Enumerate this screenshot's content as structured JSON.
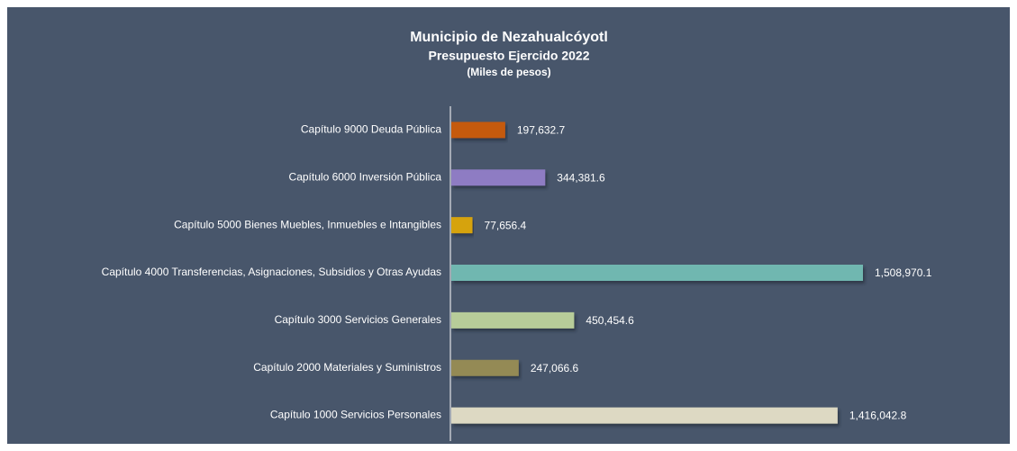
{
  "chart_data": {
    "type": "bar",
    "orientation": "horizontal",
    "title": "Municipio de Nezahualcóyotl",
    "subtitle": "Presupuesto Ejercido 2022",
    "unit_label": "(Miles de pesos)",
    "categories": [
      "Capítulo 9000 Deuda Pública",
      "Capítulo 6000 Inversión Pública",
      "Capítulo 5000 Bienes Muebles, Inmuebles e Intangibles",
      "Capítulo 4000 Transferencias, Asignaciones, Subsidios y Otras Ayudas",
      "Capítulo 3000 Servicios Generales",
      "Capítulo 2000 Materiales y Suministros",
      "Capítulo 1000 Servicios Personales"
    ],
    "values": [
      197632.7,
      344381.6,
      77656.4,
      1508970.1,
      450454.6,
      247066.6,
      1416042.8
    ],
    "value_labels": [
      "197,632.7",
      "344,381.6",
      "77,656.4",
      "1,508,970.1",
      "450,454.6",
      "247,066.6",
      "1,416,042.8"
    ],
    "colors": [
      "#c55a11",
      "#8e7cc3",
      "#d6a30a",
      "#6fb7b0",
      "#b7cc99",
      "#948a54",
      "#ddd9c3"
    ]
  }
}
